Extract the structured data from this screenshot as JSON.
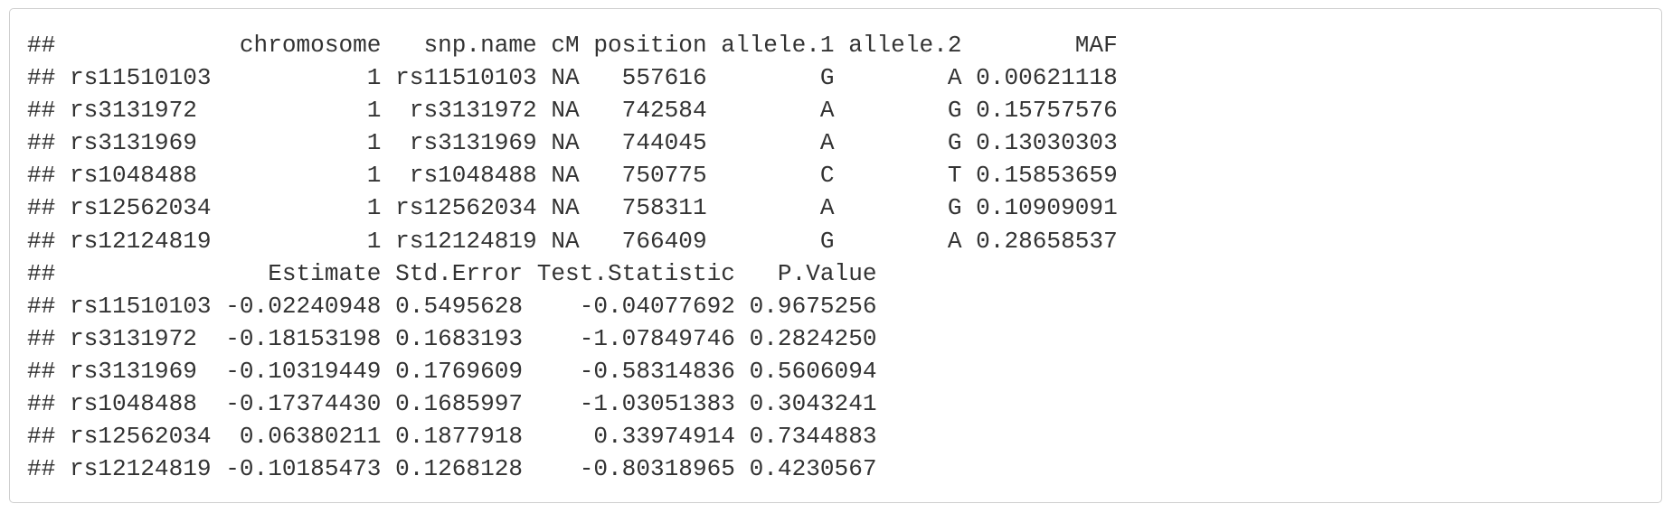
{
  "output": {
    "lines": [
      "##             chromosome   snp.name cM position allele.1 allele.2        MAF",
      "## rs11510103           1 rs11510103 NA   557616        G        A 0.00621118",
      "## rs3131972            1  rs3131972 NA   742584        A        G 0.15757576",
      "## rs3131969            1  rs3131969 NA   744045        A        G 0.13030303",
      "## rs1048488            1  rs1048488 NA   750775        C        T 0.15853659",
      "## rs12562034           1 rs12562034 NA   758311        A        G 0.10909091",
      "## rs12124819           1 rs12124819 NA   766409        G        A 0.28658537",
      "##               Estimate Std.Error Test.Statistic   P.Value",
      "## rs11510103 -0.02240948 0.5495628    -0.04077692 0.9675256",
      "## rs3131972  -0.18153198 0.1683193    -1.07849746 0.2824250",
      "## rs3131969  -0.10319449 0.1769609    -0.58314836 0.5606094",
      "## rs1048488  -0.17374430 0.1685997    -1.03051383 0.3043241",
      "## rs12562034  0.06380211 0.1877918     0.33974914 0.7344883",
      "## rs12124819 -0.10185473 0.1268128    -0.80318965 0.4230567"
    ]
  }
}
